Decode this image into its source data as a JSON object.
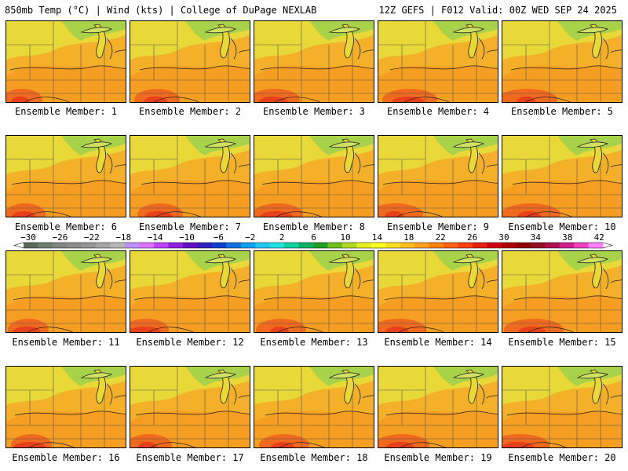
{
  "header": {
    "title_left": "850mb Temp (°C) | Wind (kts) | College of DuPage NEXLAB",
    "title_right": "12Z GEFS | F012 Valid: 00Z WED SEP 24 2025"
  },
  "panels": [
    {
      "label": "Ensemble Member: 1"
    },
    {
      "label": "Ensemble Member: 2"
    },
    {
      "label": "Ensemble Member: 3"
    },
    {
      "label": "Ensemble Member: 4"
    },
    {
      "label": "Ensemble Member: 5"
    },
    {
      "label": "Ensemble Member: 6"
    },
    {
      "label": "Ensemble Member: 7"
    },
    {
      "label": "Ensemble Member: 8"
    },
    {
      "label": "Ensemble Member: 9"
    },
    {
      "label": "Ensemble Member: 10"
    },
    {
      "label": "Ensemble Member: 11"
    },
    {
      "label": "Ensemble Member: 12"
    },
    {
      "label": "Ensemble Member: 13"
    },
    {
      "label": "Ensemble Member: 14"
    },
    {
      "label": "Ensemble Member: 15"
    },
    {
      "label": "Ensemble Member: 16"
    },
    {
      "label": "Ensemble Member: 17"
    },
    {
      "label": "Ensemble Member: 18"
    },
    {
      "label": "Ensemble Member: 19"
    },
    {
      "label": "Ensemble Member: 20"
    }
  ],
  "colorbar": {
    "tick_labels": [
      "−30",
      "−26",
      "−22",
      "−18",
      "−14",
      "−10",
      "−6",
      "−2",
      "2",
      "6",
      "10",
      "14",
      "18",
      "22",
      "26",
      "30",
      "34",
      "38",
      "42"
    ],
    "colors": [
      "#5a6a5a",
      "#6f7f6f",
      "#848484",
      "#8c8c8c",
      "#969696",
      "#a6a6a6",
      "#b8b8b8",
      "#c090ff",
      "#e070ff",
      "#c040ff",
      "#9020e0",
      "#6010c0",
      "#3020c0",
      "#1040d0",
      "#1070e0",
      "#10a0f0",
      "#20c8f0",
      "#20e0e0",
      "#10d0a0",
      "#10b060",
      "#20a020",
      "#70c020",
      "#b0d820",
      "#e8f020",
      "#ffff20",
      "#ffe020",
      "#ffc020",
      "#ffa020",
      "#ff8010",
      "#ff6010",
      "#f84010",
      "#e82010",
      "#d00010",
      "#b00000",
      "#900000",
      "#901020",
      "#b01050",
      "#d02090",
      "#f040c0",
      "#ff80ff"
    ]
  },
  "colors": {
    "background": "#ffffff",
    "warm_base": "#f5a623",
    "cool_green": "#a8d24a",
    "hot_red": "#e8401a",
    "yellow": "#f0e040"
  }
}
